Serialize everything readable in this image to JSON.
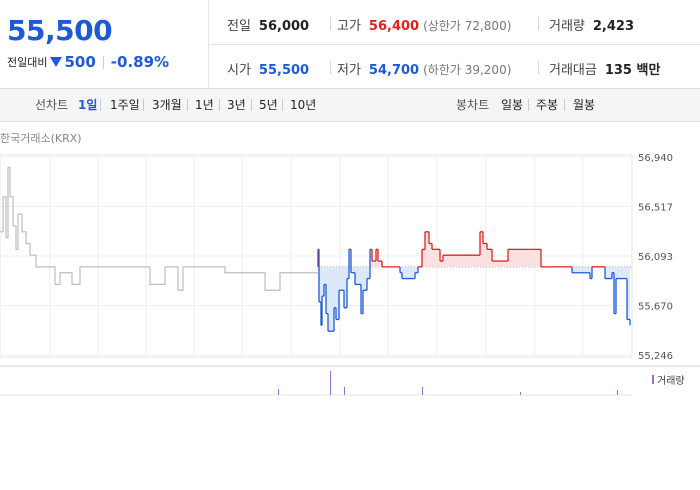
{
  "quote": {
    "price": "55,500",
    "change_label": "전일대비",
    "change_value": "500",
    "change_pct": "-0.89%",
    "prev_close_label": "전일",
    "prev_close": "56,000",
    "high_label": "고가",
    "high": "56,400",
    "upper_limit": "(상한가 72,800)",
    "volume_label": "거래량",
    "volume": "2,423",
    "open_label": "시가",
    "open": "55,500",
    "low_label": "저가",
    "low": "54,700",
    "lower_limit": "(하한가 39,200)",
    "amount_label": "거래대금",
    "amount": "135 백만"
  },
  "periods": {
    "line_label": "선차트",
    "line_items": [
      "1일",
      "1주일",
      "3개월",
      "1년",
      "3년",
      "5년",
      "10년"
    ],
    "active": "1일",
    "candle_label": "봉차트",
    "candle_items": [
      "일봉",
      "주봉",
      "월봉"
    ]
  },
  "chart_data": {
    "type": "line",
    "source": "한국거래소(KRX)",
    "y_ticks": [
      "56,940",
      "56,517",
      "56,093",
      "55,670",
      "55,246"
    ],
    "ylim": [
      55246,
      56940
    ],
    "baseline": 56000,
    "legend": "거래량",
    "colors": {
      "up": "#e02020",
      "down": "#1e5ad8",
      "prev": "#bdbdbd",
      "volume": "#9a6fd0"
    },
    "previous_day": [
      [
        0,
        56300
      ],
      [
        3,
        56300
      ],
      [
        3,
        56600
      ],
      [
        6,
        56600
      ],
      [
        6,
        56250
      ],
      [
        8,
        56250
      ],
      [
        8,
        56850
      ],
      [
        10,
        56850
      ],
      [
        10,
        56600
      ],
      [
        13,
        56600
      ],
      [
        13,
        56350
      ],
      [
        16,
        56350
      ],
      [
        16,
        56150
      ],
      [
        18,
        56150
      ],
      [
        18,
        56450
      ],
      [
        22,
        56450
      ],
      [
        22,
        56300
      ],
      [
        26,
        56300
      ],
      [
        26,
        56200
      ],
      [
        30,
        56200
      ],
      [
        30,
        56100
      ],
      [
        36,
        56100
      ],
      [
        36,
        56000
      ],
      [
        55,
        56000
      ],
      [
        55,
        55850
      ],
      [
        60,
        55850
      ],
      [
        60,
        55950
      ],
      [
        72,
        55950
      ],
      [
        72,
        55850
      ],
      [
        80,
        55850
      ],
      [
        80,
        56000
      ],
      [
        150,
        56000
      ],
      [
        150,
        55850
      ],
      [
        165,
        55850
      ],
      [
        165,
        56000
      ],
      [
        178,
        56000
      ],
      [
        178,
        55800
      ],
      [
        183,
        55800
      ],
      [
        183,
        56000
      ],
      [
        225,
        56000
      ],
      [
        225,
        55950
      ],
      [
        250,
        55950
      ],
      [
        250,
        55950
      ],
      [
        265,
        55950
      ],
      [
        265,
        55800
      ],
      [
        280,
        55800
      ],
      [
        280,
        55950
      ],
      [
        318,
        55950
      ]
    ],
    "today": [
      [
        318,
        56000
      ],
      [
        318,
        56150
      ],
      [
        319,
        56150
      ],
      [
        319,
        55700
      ],
      [
        321,
        55700
      ],
      [
        321,
        55500
      ],
      [
        322,
        55500
      ],
      [
        322,
        55750
      ],
      [
        324,
        55750
      ],
      [
        324,
        55850
      ],
      [
        326,
        55850
      ],
      [
        326,
        55600
      ],
      [
        328,
        55600
      ],
      [
        328,
        55450
      ],
      [
        334,
        55450
      ],
      [
        334,
        55650
      ],
      [
        336,
        55650
      ],
      [
        336,
        55550
      ],
      [
        339,
        55550
      ],
      [
        339,
        55800
      ],
      [
        344,
        55800
      ],
      [
        344,
        55650
      ],
      [
        347,
        55650
      ],
      [
        347,
        55900
      ],
      [
        349,
        55900
      ],
      [
        349,
        56150
      ],
      [
        351,
        56150
      ],
      [
        351,
        55950
      ],
      [
        355,
        55950
      ],
      [
        355,
        55850
      ],
      [
        361,
        55850
      ],
      [
        361,
        55600
      ],
      [
        363,
        55600
      ],
      [
        363,
        55800
      ],
      [
        367,
        55800
      ],
      [
        367,
        55900
      ],
      [
        370,
        55900
      ],
      [
        370,
        56150
      ],
      [
        372,
        56150
      ],
      [
        372,
        56050
      ],
      [
        376,
        56050
      ],
      [
        376,
        56150
      ],
      [
        378,
        56150
      ],
      [
        378,
        56050
      ],
      [
        382,
        56050
      ],
      [
        382,
        56000
      ],
      [
        400,
        56000
      ],
      [
        400,
        55950
      ],
      [
        402,
        55950
      ],
      [
        402,
        55900
      ],
      [
        415,
        55900
      ],
      [
        415,
        55950
      ],
      [
        418,
        55950
      ],
      [
        418,
        56000
      ],
      [
        422,
        56000
      ],
      [
        422,
        56150
      ],
      [
        425,
        56150
      ],
      [
        425,
        56300
      ],
      [
        429,
        56300
      ],
      [
        429,
        56200
      ],
      [
        432,
        56200
      ],
      [
        432,
        56150
      ],
      [
        440,
        56150
      ],
      [
        440,
        56050
      ],
      [
        443,
        56050
      ],
      [
        443,
        56100
      ],
      [
        480,
        56100
      ],
      [
        480,
        56300
      ],
      [
        483,
        56300
      ],
      [
        483,
        56200
      ],
      [
        487,
        56200
      ],
      [
        487,
        56150
      ],
      [
        492,
        56150
      ],
      [
        492,
        56050
      ],
      [
        496,
        56050
      ],
      [
        496,
        56050
      ],
      [
        508,
        56050
      ],
      [
        508,
        56150
      ],
      [
        541,
        56150
      ],
      [
        541,
        56000
      ],
      [
        572,
        56000
      ],
      [
        572,
        55950
      ],
      [
        590,
        55950
      ],
      [
        590,
        55900
      ],
      [
        592,
        55900
      ],
      [
        592,
        56000
      ],
      [
        605,
        56000
      ],
      [
        605,
        55900
      ],
      [
        612,
        55900
      ],
      [
        612,
        55950
      ],
      [
        614,
        55950
      ],
      [
        614,
        55600
      ],
      [
        616,
        55600
      ],
      [
        616,
        55900
      ],
      [
        627,
        55900
      ],
      [
        627,
        55550
      ],
      [
        630,
        55550
      ],
      [
        630,
        55500
      ]
    ],
    "volume_bars": [
      [
        278,
        6
      ],
      [
        330,
        24
      ],
      [
        344,
        8
      ],
      [
        422,
        8
      ],
      [
        520,
        3
      ],
      [
        617,
        5
      ]
    ]
  }
}
